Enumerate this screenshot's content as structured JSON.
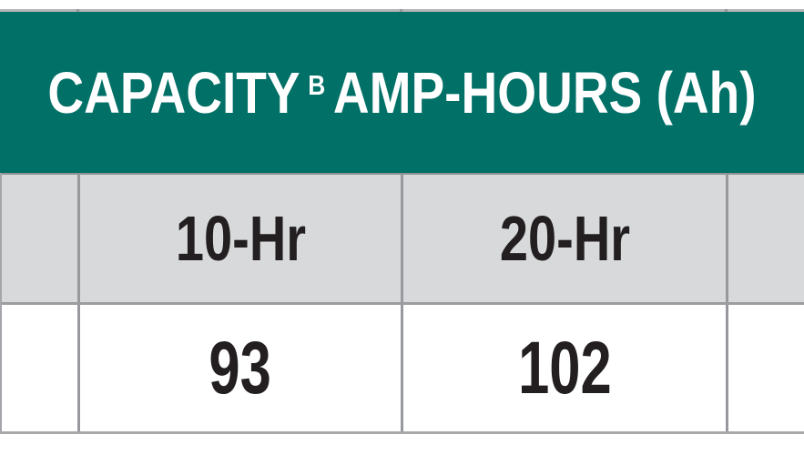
{
  "table": {
    "title_prefix": "CAPACITY",
    "title_footnote_marker": "B",
    "title_suffix": "AMP-HOURS (Ah)",
    "column_headers": [
      "10-Hr",
      "20-Hr"
    ],
    "row_values": [
      "93",
      "102"
    ]
  },
  "colors": {
    "banner_background": "#017067",
    "banner_text": "#FFFFFF",
    "subheader_background": "#D7D9DB",
    "data_row_background": "#FFFFFF",
    "grid_line": "#97999C",
    "body_text": "#231F20"
  }
}
